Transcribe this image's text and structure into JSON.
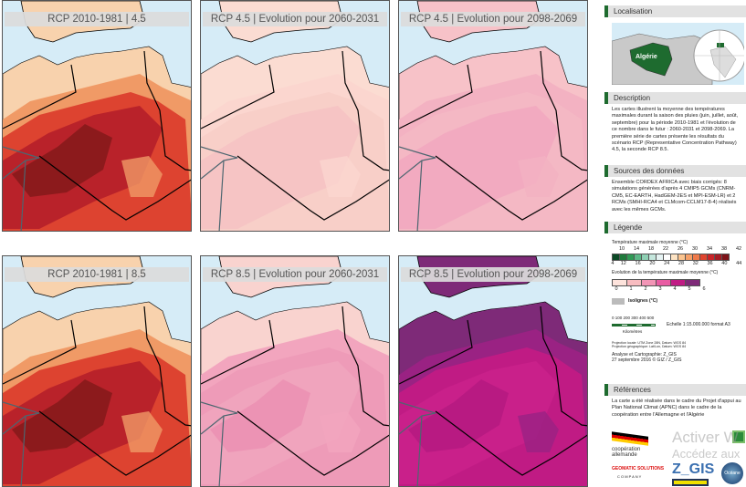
{
  "maps": [
    {
      "title": "RCP 2010-1981 | 4.5",
      "colors": [
        "#f8d2ad",
        "#f09a66",
        "#dd4330",
        "#b9222a",
        "#8c1a1c"
      ]
    },
    {
      "title": "RCP 4.5 | Evolution pour 2060-2031",
      "colors": [
        "#fbdcd2",
        "#fbd6cf",
        "#f8cfc8",
        "#f6c4c4",
        "#f6c4c4"
      ]
    },
    {
      "title": "RCP 4.5 | Evolution pour 2098-2069",
      "colors": [
        "#f7c2c8",
        "#f3b2c2",
        "#f4b8c4",
        "#f2aac0",
        "#f2aac0"
      ]
    },
    {
      "title": "RCP 2010-1981 | 8.5",
      "colors": [
        "#f8d2ad",
        "#f09a66",
        "#dd4330",
        "#b9222a",
        "#8c1a1c"
      ]
    },
    {
      "title": "RCP 8.5 | Evolution pour 2060-2031",
      "colors": [
        "#f9d3cf",
        "#f2a5be",
        "#ee9bb8",
        "#f0a4bd",
        "#ec93b4"
      ]
    },
    {
      "title": "RCP 8.5 | Evolution pour 2098-2069",
      "colors": [
        "#7e2a78",
        "#9a2283",
        "#c01b84",
        "#c9208a",
        "#b81a82"
      ]
    }
  ],
  "sidebar": {
    "localisation": {
      "title": "Localisation",
      "country": "Algérie"
    },
    "description": {
      "title": "Description",
      "text": "Les cartes illustrent la moyenne des températures maximales durant la saison des pluies (juin, juillet, août, septembre) pour la période 2010-1981 et l'évolution de ce nombre dans le futur : 2060-2031 et 2098-2069. La première série de cartes présente les résultats du scénario RCP (Representative Concentration Pathway) 4.5, la seconde RCP 8.5."
    },
    "sources": {
      "title": "Sources des données",
      "text": "Ensemble CORDEX AFRICA avec biais corrigés: 8 simulations générées d'après 4 CMIP5 GCMs (CNRM-CM5, EC-EARTH, HadGEM-2ES et MPI-ESM-LR) et 2 RCMs (SMHI-RCA4 et CLMcom-CCLM17-8-4) réalisés avec les mêmes GCMs."
    },
    "legende": {
      "title": "Légende",
      "temp_label": "Température maximale moyenne  (°C)",
      "temp_top": [
        "10",
        "14",
        "18",
        "22",
        "26",
        "30",
        "34",
        "38",
        "42"
      ],
      "temp_bottom": [
        "4",
        "12",
        "16",
        "20",
        "24",
        "28",
        "32",
        "36",
        "40",
        "44"
      ],
      "temp_colors": [
        "#0b4a26",
        "#1f7a3b",
        "#2f9a55",
        "#5bb886",
        "#8fd0b4",
        "#c4e6dc",
        "#e6f3f3",
        "#ffffff",
        "#fde3c3",
        "#fbc48f",
        "#f6a068",
        "#ef7a4a",
        "#e0452f",
        "#c92428",
        "#a51b23",
        "#7e1419"
      ],
      "evo_label": "Evolution de la température maximale moyenne (°C)",
      "evo_values": [
        "0",
        "1",
        "2",
        "3",
        "4",
        "5",
        "6"
      ],
      "evo_colors": [
        "#fde3dc",
        "#f8bcc0",
        "#f295b6",
        "#e85ca3",
        "#c01b84",
        "#7e2a78"
      ],
      "isolignes": "Isolignes (°C)",
      "scale_ticks": "0   100 200 300 400 500",
      "scale_unit": "Kilomètres",
      "scale_text": "Echelle 1:15.000.000 format A3",
      "proj1": "Projection locale: UTM Zone 28N, Datum: WGS 84",
      "proj2": "Projection géographique: Lat/Lon, Datum: WGS 84",
      "analyse": "Analyse et Cartographie: Z_GIS",
      "date": "27 septembre 2016 © GIZ / Z_GIS"
    },
    "references": {
      "title": "Références",
      "text": "La carte a été réalisée dans le cadre du Projet d'appui au Plan National Climat (APNC) dans le cadre de la coopération entre l'Allemagne et l'Algérie"
    },
    "logos": {
      "giz": "coopération allemande",
      "zgis": "Z_GIS",
      "geomatic": "GEOMATIC SOLUTIONS",
      "company": "C O M P A N Y",
      "ocisse": "Océane"
    },
    "watermark": {
      "line1": "Activer W",
      "line2": "Accédez aux"
    }
  }
}
